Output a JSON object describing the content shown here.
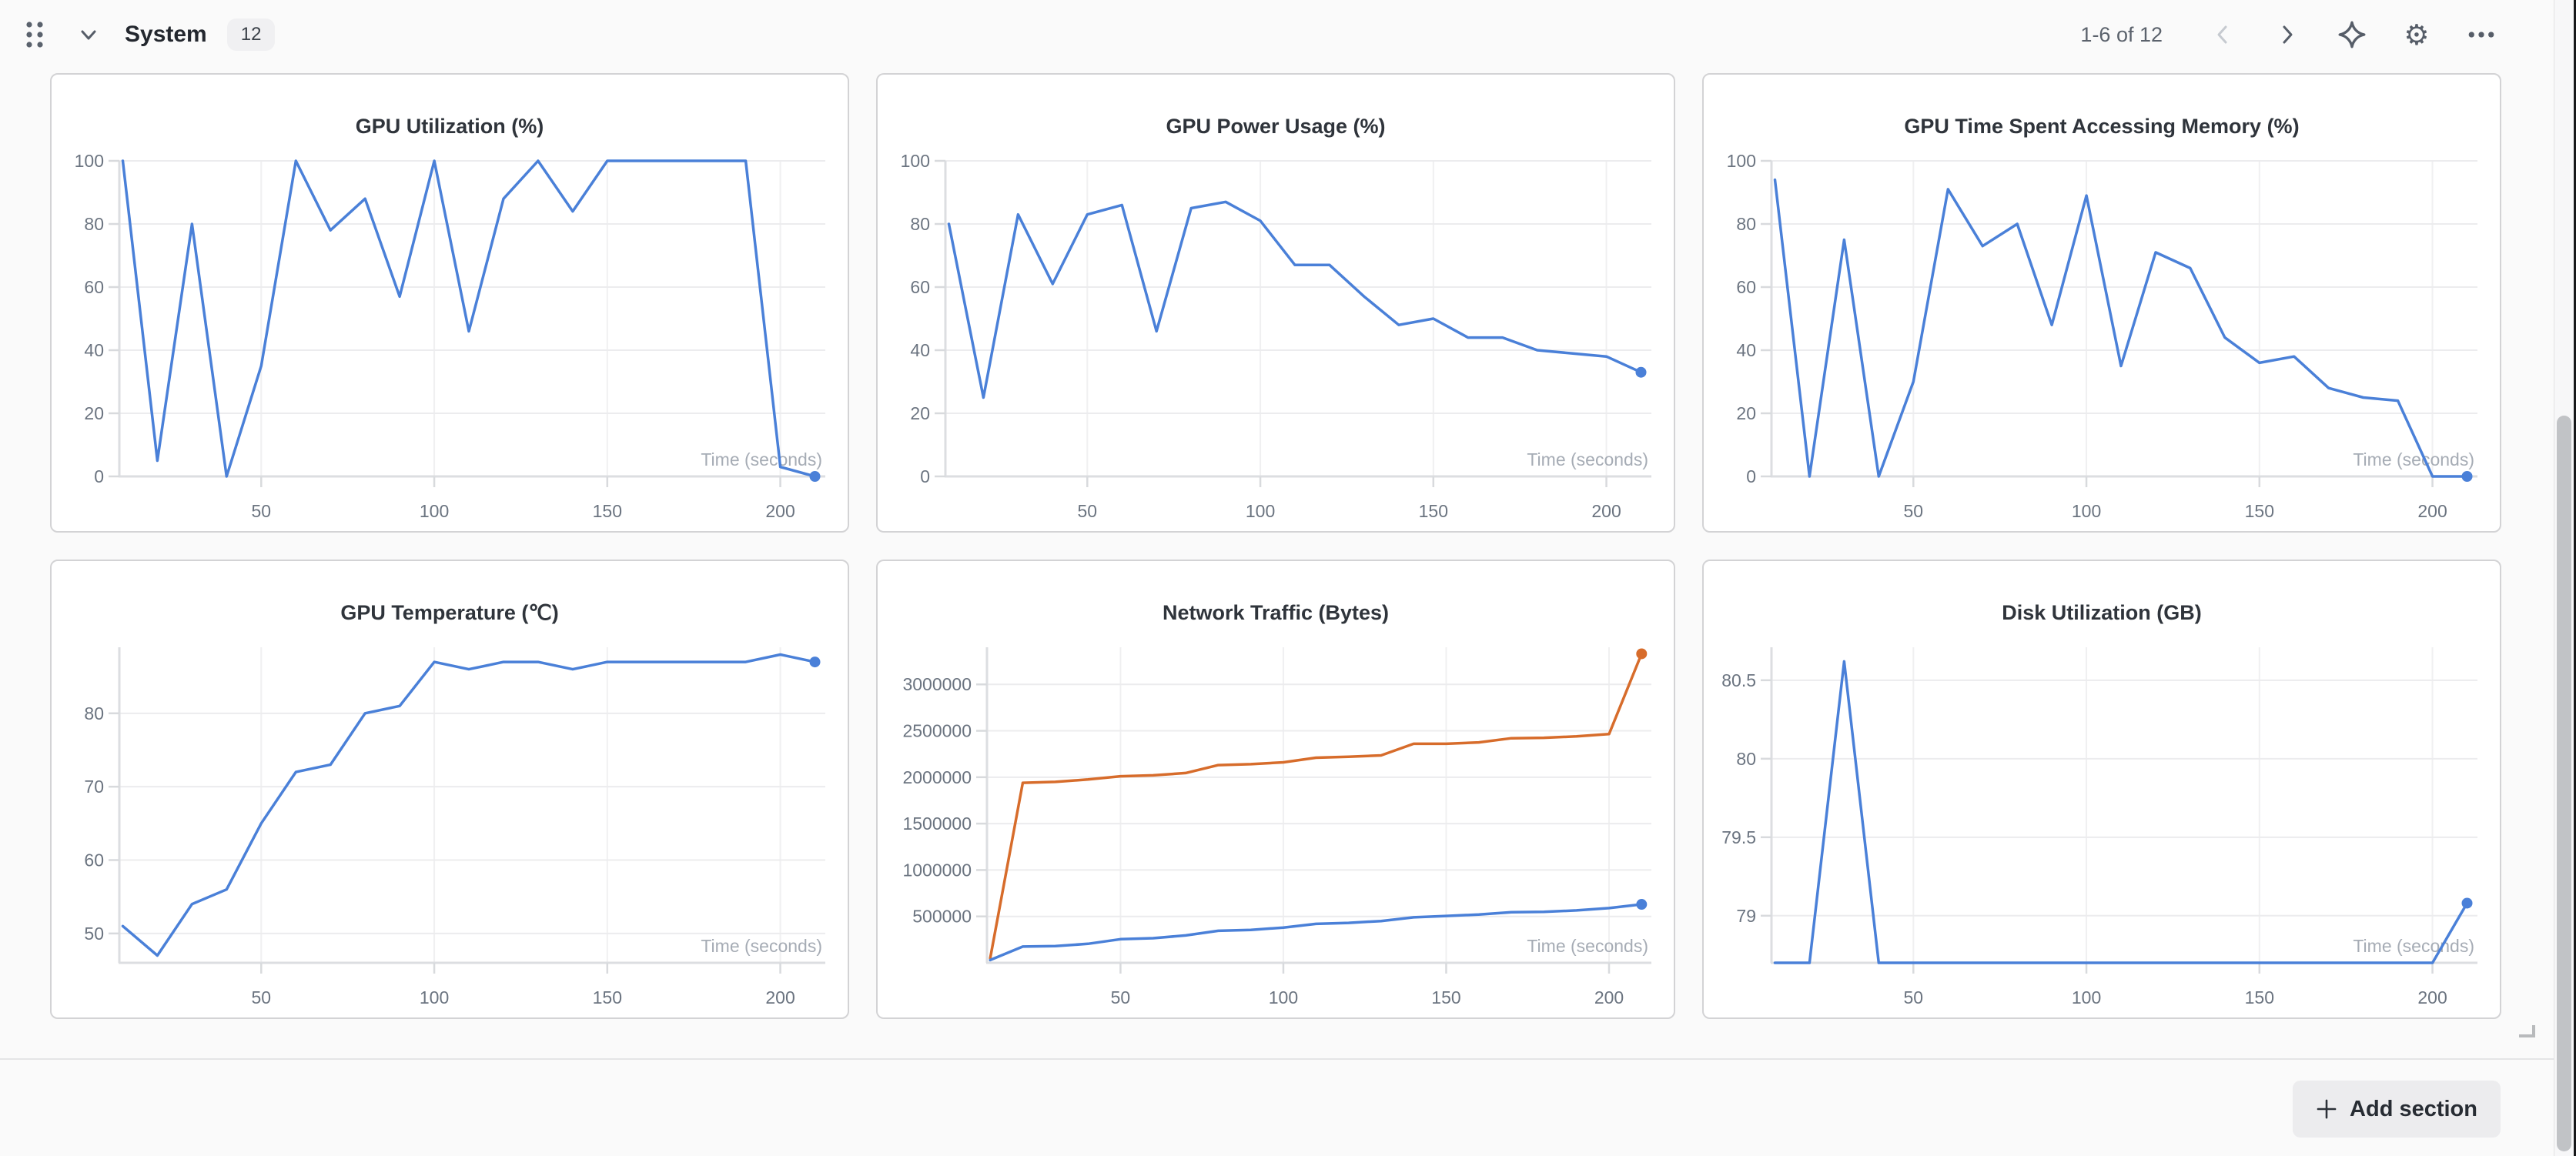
{
  "header": {
    "title": "System",
    "badge_count": "12",
    "pagination": "1-6 of 12"
  },
  "footer": {
    "add_section_label": "Add section"
  },
  "colors": {
    "line_blue": "#4a80d8",
    "line_orange": "#d76c2b",
    "grid": "#ececee",
    "grid_vertical": "#f0f0f1",
    "axis": "#dcdee1",
    "tick": "#d8dadd",
    "tick_label": "#6b7480",
    "time_label": "#a6acb5"
  },
  "chart_data": [
    {
      "type": "line",
      "title": "GPU Utilization (%)",
      "xlabel": "Time (seconds)",
      "x": [
        10,
        20,
        30,
        40,
        50,
        60,
        70,
        80,
        90,
        100,
        110,
        120,
        130,
        140,
        150,
        160,
        170,
        180,
        190,
        200,
        210
      ],
      "xticks": [
        50,
        100,
        150,
        200
      ],
      "xlim": [
        9,
        213
      ],
      "yticks": [
        0,
        20,
        40,
        60,
        80,
        100
      ],
      "ylim": [
        0,
        100
      ],
      "grid": true,
      "legend": "none",
      "series": [
        {
          "name": "blue",
          "color": "#4a80d8",
          "values": [
            100,
            5,
            80,
            0,
            35,
            100,
            78,
            88,
            57,
            100,
            46,
            88,
            100,
            84,
            100,
            100,
            100,
            100,
            100,
            3,
            0
          ]
        }
      ]
    },
    {
      "type": "line",
      "title": "GPU Power Usage (%)",
      "xlabel": "Time (seconds)",
      "x": [
        10,
        20,
        30,
        40,
        50,
        60,
        70,
        80,
        90,
        100,
        110,
        120,
        130,
        140,
        150,
        160,
        170,
        180,
        190,
        200,
        210
      ],
      "xticks": [
        50,
        100,
        150,
        200
      ],
      "xlim": [
        9,
        213
      ],
      "yticks": [
        0,
        20,
        40,
        60,
        80,
        100
      ],
      "ylim": [
        0,
        100
      ],
      "grid": true,
      "legend": "none",
      "series": [
        {
          "name": "blue",
          "color": "#4a80d8",
          "values": [
            80,
            25,
            83,
            61,
            83,
            86,
            46,
            85,
            87,
            81,
            67,
            67,
            57,
            48,
            50,
            44,
            44,
            40,
            39,
            38,
            33
          ]
        }
      ]
    },
    {
      "type": "line",
      "title": "GPU Time Spent Accessing Memory (%)",
      "xlabel": "Time (seconds)",
      "x": [
        10,
        20,
        30,
        40,
        50,
        60,
        70,
        80,
        90,
        100,
        110,
        120,
        130,
        140,
        150,
        160,
        170,
        180,
        190,
        200,
        210
      ],
      "xticks": [
        50,
        100,
        150,
        200
      ],
      "xlim": [
        9,
        213
      ],
      "yticks": [
        0,
        20,
        40,
        60,
        80,
        100
      ],
      "ylim": [
        0,
        100
      ],
      "grid": true,
      "legend": "none",
      "series": [
        {
          "name": "blue",
          "color": "#4a80d8",
          "values": [
            94,
            0,
            75,
            0,
            30,
            91,
            73,
            80,
            48,
            89,
            35,
            71,
            66,
            44,
            36,
            38,
            28,
            25,
            24,
            0,
            0
          ]
        }
      ]
    },
    {
      "type": "line",
      "title": "GPU Temperature (℃)",
      "xlabel": "Time (seconds)",
      "x": [
        10,
        20,
        30,
        40,
        50,
        60,
        70,
        80,
        90,
        100,
        110,
        120,
        130,
        140,
        150,
        160,
        170,
        180,
        190,
        200,
        210
      ],
      "xticks": [
        50,
        100,
        150,
        200
      ],
      "xlim": [
        9,
        213
      ],
      "yticks": [
        50,
        60,
        70,
        80
      ],
      "ylim": [
        46,
        89
      ],
      "grid": true,
      "legend": "none",
      "series": [
        {
          "name": "blue",
          "color": "#4a80d8",
          "values": [
            51,
            47,
            54,
            56,
            65,
            72,
            73,
            80,
            81,
            87,
            86,
            87,
            87,
            86,
            87,
            87,
            87,
            87,
            87,
            88,
            87
          ]
        }
      ]
    },
    {
      "type": "line",
      "title": "Network Traffic (Bytes)",
      "xlabel": "Time (seconds)",
      "x": [
        10,
        20,
        30,
        40,
        50,
        60,
        70,
        80,
        90,
        100,
        110,
        120,
        130,
        140,
        150,
        160,
        170,
        180,
        190,
        200,
        210
      ],
      "xticks": [
        50,
        100,
        150,
        200
      ],
      "xlim": [
        9,
        213
      ],
      "yticks": [
        500000,
        1000000,
        1500000,
        2000000,
        2500000,
        3000000
      ],
      "ylim": [
        0,
        3400000
      ],
      "grid": true,
      "legend": "none",
      "series": [
        {
          "name": "orange",
          "color": "#d76c2b",
          "values": [
            50000,
            1940000,
            1950000,
            1975000,
            2010000,
            2020000,
            2045000,
            2130000,
            2140000,
            2160000,
            2210000,
            2220000,
            2235000,
            2360000,
            2360000,
            2375000,
            2420000,
            2425000,
            2440000,
            2465000,
            3330000
          ]
        },
        {
          "name": "blue",
          "color": "#4a80d8",
          "values": [
            30000,
            175000,
            180000,
            205000,
            255000,
            265000,
            295000,
            345000,
            355000,
            380000,
            420000,
            430000,
            450000,
            490000,
            505000,
            520000,
            545000,
            550000,
            565000,
            590000,
            630000
          ]
        }
      ]
    },
    {
      "type": "line",
      "title": "Disk Utilization (GB)",
      "xlabel": "Time (seconds)",
      "x": [
        10,
        20,
        30,
        40,
        50,
        60,
        70,
        80,
        90,
        100,
        110,
        120,
        130,
        140,
        150,
        160,
        170,
        180,
        190,
        200,
        210
      ],
      "xticks": [
        50,
        100,
        150,
        200
      ],
      "xlim": [
        9,
        213
      ],
      "yticks": [
        79,
        79.5,
        80,
        80.5
      ],
      "ylim": [
        78.7,
        80.71
      ],
      "grid": true,
      "legend": "none",
      "series": [
        {
          "name": "blue",
          "color": "#4a80d8",
          "values": [
            78.7,
            78.7,
            80.62,
            78.7,
            78.7,
            78.7,
            78.7,
            78.7,
            78.7,
            78.7,
            78.7,
            78.7,
            78.7,
            78.7,
            78.7,
            78.7,
            78.7,
            78.7,
            78.7,
            78.7,
            79.08
          ]
        }
      ]
    }
  ]
}
